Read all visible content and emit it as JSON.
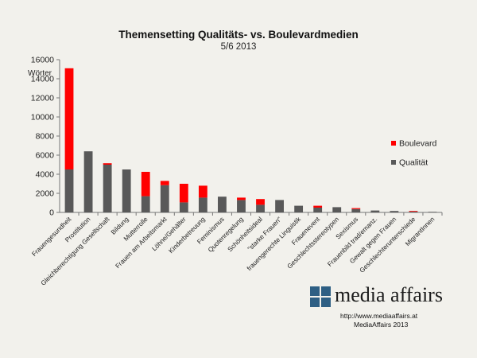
{
  "colors": {
    "background": "#f2f1ec",
    "boulevard": "#ff0000",
    "qualitaet": "#595959",
    "logo_blue": "#2e5f84"
  },
  "chart_data": {
    "type": "bar",
    "stacked": true,
    "title": "Themensetting Qualitäts- vs. Boulevardmedien",
    "subtitle": "5/6 2013",
    "ylabel": "Wörter",
    "xlabel": "",
    "ylim": [
      0,
      16000
    ],
    "yticks": [
      0,
      2000,
      4000,
      6000,
      8000,
      10000,
      12000,
      14000,
      16000
    ],
    "grid": false,
    "legend_position": "right",
    "categories": [
      "Frauengesundheit",
      "Prostitution",
      "Gleichberechtigung Gesellschaft",
      "Bildung",
      "Mutterrolle",
      "Frauen am Arbeitsmarkt",
      "Löhne/Gehälter",
      "Kinderbetreuung",
      "Feminismus",
      "Quotenregelung",
      "Schönheitsideal",
      "\"starke Frauen\"",
      "frauengerechte Linguistik",
      "Frauenevent",
      "Geschlechtsstereotypen",
      "Sexismus",
      "Frauenbild trad/emanz.",
      "Gewalt gegen Frauen",
      "Geschlechterunterschiede",
      "MigrantInnen"
    ],
    "series": [
      {
        "name": "Qualität",
        "color": "#595959",
        "values": [
          4500,
          6400,
          5000,
          4500,
          1700,
          2850,
          1050,
          1550,
          1650,
          1300,
          800,
          1300,
          700,
          500,
          550,
          350,
          200,
          150,
          80,
          60
        ]
      },
      {
        "name": "Boulevard",
        "color": "#ff0000",
        "values": [
          10600,
          0,
          150,
          0,
          2550,
          450,
          1950,
          1250,
          0,
          250,
          600,
          0,
          0,
          200,
          0,
          100,
          0,
          0,
          70,
          0
        ]
      }
    ],
    "legend": [
      "Boulevard",
      "Qualität"
    ]
  },
  "logo": {
    "brand": "media affairs",
    "url": "http://www.mediaaffairs.at",
    "credit": "MediaAffairs  2013"
  }
}
